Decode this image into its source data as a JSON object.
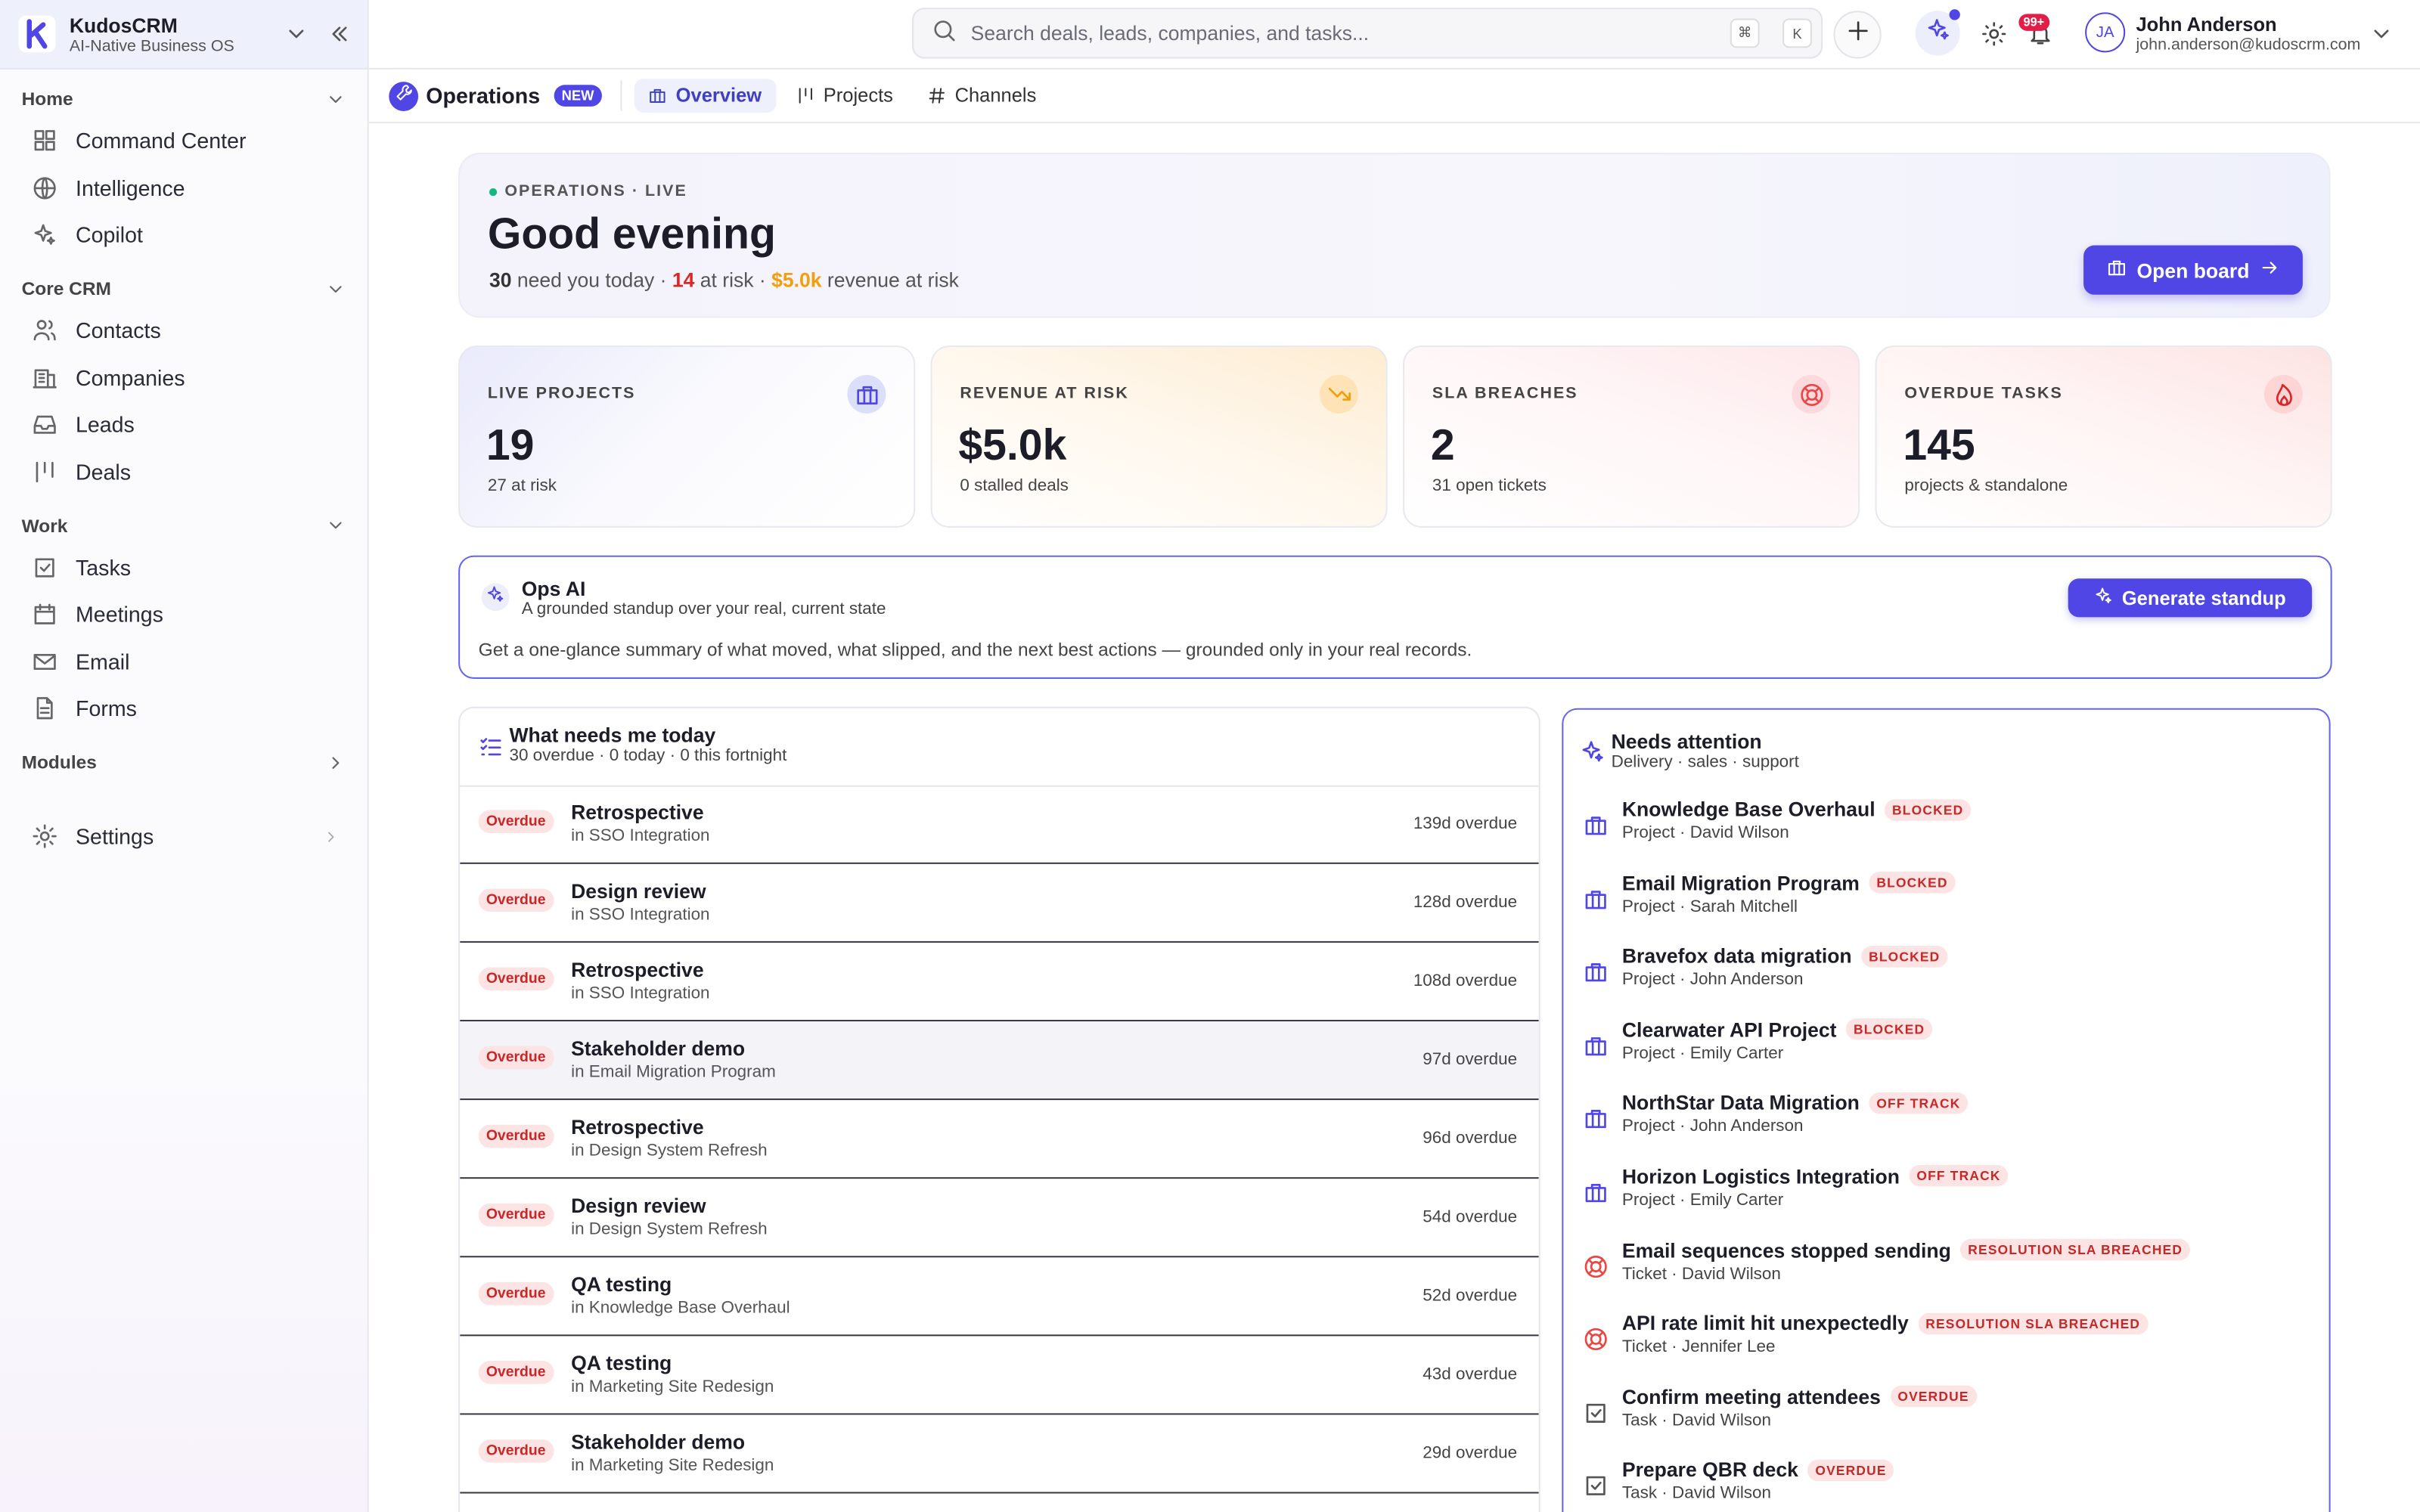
{
  "sidebar": {
    "brand": "KudosCRM",
    "tagline": "AI-Native Business OS",
    "sections": [
      {
        "title": "Home",
        "expanded": true,
        "items": [
          {
            "label": "Command Center",
            "icon": "grid"
          },
          {
            "label": "Intelligence",
            "icon": "globe"
          },
          {
            "label": "Copilot",
            "icon": "spark"
          }
        ]
      },
      {
        "title": "Core CRM",
        "expanded": true,
        "items": [
          {
            "label": "Contacts",
            "icon": "users"
          },
          {
            "label": "Companies",
            "icon": "building"
          },
          {
            "label": "Leads",
            "icon": "inbox"
          },
          {
            "label": "Deals",
            "icon": "bars"
          }
        ]
      },
      {
        "title": "Work",
        "expanded": true,
        "items": [
          {
            "label": "Tasks",
            "icon": "check"
          },
          {
            "label": "Meetings",
            "icon": "calendar"
          },
          {
            "label": "Email",
            "icon": "mail"
          },
          {
            "label": "Forms",
            "icon": "doc"
          }
        ]
      },
      {
        "title": "Modules",
        "expanded": false,
        "items": []
      }
    ],
    "settings": "Settings"
  },
  "topbar": {
    "search_placeholder": "Search deals, leads, companies, and tasks...",
    "shortcut": [
      "⌘",
      "K"
    ],
    "notifications": "99+",
    "user": {
      "initials": "JA",
      "name": "John Anderson",
      "email": "john.anderson@kudoscrm.com"
    }
  },
  "tabs": {
    "section": "Operations",
    "badge": "NEW",
    "items": [
      {
        "label": "Overview",
        "icon": "briefcase"
      },
      {
        "label": "Projects",
        "icon": "bars"
      },
      {
        "label": "Channels",
        "icon": "hash"
      }
    ],
    "active": 0
  },
  "hero": {
    "eyebrow": "OPERATIONS · LIVE",
    "title": "Good evening",
    "summary": [
      {
        "text": "30",
        "tone": "strong"
      },
      {
        "text": " need you today · ",
        "tone": "muted"
      },
      {
        "text": "14",
        "tone": "danger"
      },
      {
        "text": " at risk · ",
        "tone": "muted"
      },
      {
        "text": "$5.0k",
        "tone": "warning"
      },
      {
        "text": " revenue at risk",
        "tone": "muted"
      }
    ],
    "button": "Open board"
  },
  "kpis": [
    {
      "label": "LIVE PROJECTS",
      "value": "19",
      "note": "27 at risk",
      "tone": "indigo",
      "icon": "briefcase"
    },
    {
      "label": "REVENUE AT RISK",
      "value": "$5.0k",
      "note": "0 stalled deals",
      "tone": "amber",
      "icon": "trend"
    },
    {
      "label": "SLA BREACHES",
      "value": "2",
      "note": "31 open tickets",
      "tone": "rose",
      "icon": "ring"
    },
    {
      "label": "OVERDUE TASKS",
      "value": "145",
      "note": "projects & standalone",
      "tone": "red",
      "icon": "flame"
    }
  ],
  "ops_ai": {
    "title": "Ops AI",
    "subtitle": "A grounded standup over your real, current state",
    "body": "Get a one-glance summary of what moved, what slipped, and the next best actions — grounded only in your real records.",
    "button": "Generate standup"
  },
  "today": {
    "title": "What needs me today",
    "subtitle": "30 overdue · 0 today · 0 this fortnight",
    "highlighted": 3,
    "rows": [
      {
        "badge": "Overdue",
        "title": "Retrospective",
        "context": "in SSO Integration",
        "due": "139d overdue"
      },
      {
        "badge": "Overdue",
        "title": "Design review",
        "context": "in SSO Integration",
        "due": "128d overdue"
      },
      {
        "badge": "Overdue",
        "title": "Retrospective",
        "context": "in SSO Integration",
        "due": "108d overdue"
      },
      {
        "badge": "Overdue",
        "title": "Stakeholder demo",
        "context": "in Email Migration Program",
        "due": "97d overdue"
      },
      {
        "badge": "Overdue",
        "title": "Retrospective",
        "context": "in Design System Refresh",
        "due": "96d overdue"
      },
      {
        "badge": "Overdue",
        "title": "Design review",
        "context": "in Design System Refresh",
        "due": "54d overdue"
      },
      {
        "badge": "Overdue",
        "title": "QA testing",
        "context": "in Knowledge Base Overhaul",
        "due": "52d overdue"
      },
      {
        "badge": "Overdue",
        "title": "QA testing",
        "context": "in Marketing Site Redesign",
        "due": "43d overdue"
      },
      {
        "badge": "Overdue",
        "title": "Stakeholder demo",
        "context": "in Marketing Site Redesign",
        "due": "29d overdue"
      }
    ]
  },
  "attention": {
    "title": "Needs attention",
    "subtitle": "Delivery · sales · support",
    "items": [
      {
        "title": "Knowledge Base Overhaul",
        "status": "BLOCKED",
        "meta": "Project · David Wilson",
        "kind": "project"
      },
      {
        "title": "Email Migration Program",
        "status": "BLOCKED",
        "meta": "Project · Sarah Mitchell",
        "kind": "project"
      },
      {
        "title": "Bravefox data migration",
        "status": "BLOCKED",
        "meta": "Project · John Anderson",
        "kind": "project"
      },
      {
        "title": "Clearwater API Project",
        "status": "BLOCKED",
        "meta": "Project · Emily Carter",
        "kind": "project"
      },
      {
        "title": "NorthStar Data Migration",
        "status": "OFF TRACK",
        "meta": "Project · John Anderson",
        "kind": "project"
      },
      {
        "title": "Horizon Logistics Integration",
        "status": "OFF TRACK",
        "meta": "Project · Emily Carter",
        "kind": "project"
      },
      {
        "title": "Email sequences stopped sending",
        "status": "RESOLUTION SLA BREACHED",
        "meta": "Ticket · David Wilson",
        "kind": "ticket"
      },
      {
        "title": "API rate limit hit unexpectedly",
        "status": "RESOLUTION SLA BREACHED",
        "meta": "Ticket · Jennifer Lee",
        "kind": "ticket"
      },
      {
        "title": "Confirm meeting attendees",
        "status": "OVERDUE",
        "meta": "Task · David Wilson",
        "kind": "task"
      },
      {
        "title": "Prepare QBR deck",
        "status": "OVERDUE",
        "meta": "Task · David Wilson",
        "kind": "task"
      }
    ]
  }
}
